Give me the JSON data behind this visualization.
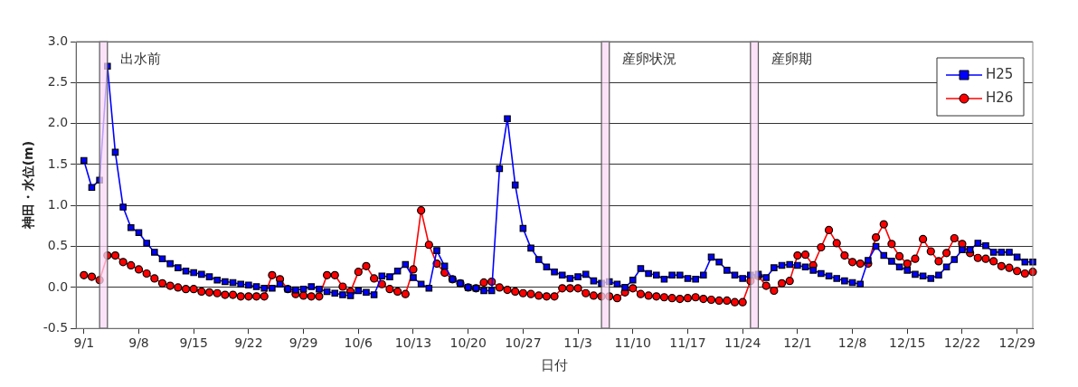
{
  "chart_data": {
    "type": "line",
    "xlabel": "日付",
    "ylabel": "神田・水位(m)",
    "x": [
      "--09-01",
      "--09-02",
      "--09-03",
      "--09-04",
      "--09-05",
      "--09-06",
      "--09-07",
      "--09-08",
      "--09-09",
      "--09-10",
      "--09-11",
      "--09-12",
      "--09-13",
      "--09-14",
      "--09-15",
      "--09-16",
      "--09-17",
      "--09-18",
      "--09-19",
      "--09-20",
      "--09-21",
      "--09-22",
      "--09-23",
      "--09-24",
      "--09-25",
      "--09-26",
      "--09-27",
      "--09-28",
      "--09-29",
      "--09-30",
      "--10-01",
      "--10-02",
      "--10-03",
      "--10-04",
      "--10-05",
      "--10-06",
      "--10-07",
      "--10-08",
      "--10-09",
      "--10-10",
      "--10-11",
      "--10-12",
      "--10-13",
      "--10-14",
      "--10-15",
      "--10-16",
      "--10-17",
      "--10-18",
      "--10-19",
      "--10-20",
      "--10-21",
      "--10-22",
      "--10-23",
      "--10-24",
      "--10-25",
      "--10-26",
      "--10-27",
      "--10-28",
      "--10-29",
      "--10-30",
      "--10-31",
      "--11-01",
      "--11-02",
      "--11-03",
      "--11-04",
      "--11-05",
      "--11-06",
      "--11-07",
      "--11-08",
      "--11-09",
      "--11-10",
      "--11-11",
      "--11-12",
      "--11-13",
      "--11-14",
      "--11-15",
      "--11-16",
      "--11-17",
      "--11-18",
      "--11-19",
      "--11-20",
      "--11-21",
      "--11-22",
      "--11-23",
      "--11-24",
      "--11-25",
      "--11-26",
      "--11-27",
      "--11-28",
      "--11-29",
      "--11-30",
      "--12-01",
      "--12-02",
      "--12-03",
      "--12-04",
      "--12-05",
      "--12-06",
      "--12-07",
      "--12-08",
      "--12-09",
      "--12-10",
      "--12-11",
      "--12-12",
      "--12-13",
      "--12-14",
      "--12-15",
      "--12-16",
      "--12-17",
      "--12-18",
      "--12-19",
      "--12-20",
      "--12-21",
      "--12-22",
      "--12-23",
      "--12-24",
      "--12-25",
      "--12-26",
      "--12-27",
      "--12-28",
      "--12-29",
      "--12-30",
      "--12-31"
    ],
    "series": [
      {
        "name": "H25",
        "color": "#0000ff",
        "marker": "square",
        "values": [
          1.55,
          1.22,
          1.31,
          2.7,
          1.65,
          0.98,
          0.73,
          0.67,
          0.54,
          0.43,
          0.35,
          0.29,
          0.24,
          0.2,
          0.18,
          0.16,
          0.13,
          0.09,
          0.07,
          0.06,
          0.04,
          0.03,
          0.01,
          -0.01,
          -0.01,
          0.04,
          -0.02,
          -0.03,
          -0.02,
          0.01,
          -0.02,
          -0.05,
          -0.07,
          -0.09,
          -0.1,
          -0.04,
          -0.06,
          -0.09,
          0.14,
          0.13,
          0.2,
          0.28,
          0.12,
          0.04,
          -0.01,
          0.45,
          0.26,
          0.1,
          0.05,
          0.0,
          -0.01,
          -0.04,
          -0.04,
          1.45,
          2.06,
          1.25,
          0.72,
          0.48,
          0.34,
          0.25,
          0.19,
          0.15,
          0.11,
          0.13,
          0.16,
          0.08,
          0.05,
          0.07,
          0.04,
          0.0,
          0.09,
          0.23,
          0.17,
          0.15,
          0.1,
          0.15,
          0.15,
          0.11,
          0.1,
          0.15,
          0.37,
          0.31,
          0.21,
          0.15,
          0.11,
          0.15,
          0.16,
          0.12,
          0.24,
          0.27,
          0.28,
          0.27,
          0.25,
          0.21,
          0.17,
          0.14,
          0.11,
          0.08,
          0.06,
          0.04,
          0.33,
          0.5,
          0.39,
          0.32,
          0.25,
          0.21,
          0.16,
          0.14,
          0.11,
          0.15,
          0.25,
          0.34,
          0.46,
          0.46,
          0.54,
          0.51,
          0.43,
          0.43,
          0.43,
          0.37,
          0.31,
          0.31
        ]
      },
      {
        "name": "H26",
        "color": "#ff0000",
        "marker": "circle",
        "values": [
          0.15,
          0.13,
          0.09,
          0.39,
          0.39,
          0.31,
          0.27,
          0.22,
          0.17,
          0.11,
          0.05,
          0.02,
          0.0,
          -0.02,
          -0.02,
          -0.05,
          -0.06,
          -0.07,
          -0.09,
          -0.09,
          -0.11,
          -0.11,
          -0.11,
          -0.11,
          0.15,
          0.1,
          -0.02,
          -0.08,
          -0.1,
          -0.11,
          -0.11,
          0.15,
          0.15,
          0.01,
          -0.05,
          0.19,
          0.26,
          0.11,
          0.04,
          -0.02,
          -0.05,
          -0.08,
          0.22,
          0.94,
          0.52,
          0.29,
          0.18,
          0.1,
          0.05,
          0.0,
          -0.01,
          0.06,
          0.07,
          0.0,
          -0.03,
          -0.05,
          -0.07,
          -0.08,
          -0.1,
          -0.11,
          -0.11,
          -0.01,
          -0.01,
          -0.01,
          -0.07,
          -0.1,
          -0.11,
          -0.11,
          -0.13,
          -0.06,
          -0.01,
          -0.08,
          -0.1,
          -0.11,
          -0.12,
          -0.13,
          -0.14,
          -0.13,
          -0.12,
          -0.14,
          -0.15,
          -0.16,
          -0.16,
          -0.18,
          -0.18,
          0.08,
          0.14,
          0.02,
          -0.04,
          0.05,
          0.08,
          0.39,
          0.4,
          0.27,
          0.49,
          0.7,
          0.54,
          0.39,
          0.31,
          0.29,
          0.29,
          0.61,
          0.77,
          0.53,
          0.38,
          0.29,
          0.35,
          0.59,
          0.44,
          0.32,
          0.42,
          0.6,
          0.53,
          0.42,
          0.36,
          0.35,
          0.32,
          0.26,
          0.24,
          0.2,
          0.17,
          0.19
        ]
      }
    ],
    "xlim": [
      "--08-31",
      "--12-31"
    ],
    "xticks": [
      {
        "value": "--09-01",
        "label": "9/1"
      },
      {
        "value": "--09-08",
        "label": "9/8"
      },
      {
        "value": "--09-15",
        "label": "9/15"
      },
      {
        "value": "--09-22",
        "label": "9/22"
      },
      {
        "value": "--09-29",
        "label": "9/29"
      },
      {
        "value": "--10-06",
        "label": "10/6"
      },
      {
        "value": "--10-13",
        "label": "10/13"
      },
      {
        "value": "--10-20",
        "label": "10/20"
      },
      {
        "value": "--10-27",
        "label": "10/27"
      },
      {
        "value": "--11-03",
        "label": "11/3"
      },
      {
        "value": "--11-10",
        "label": "11/10"
      },
      {
        "value": "--11-17",
        "label": "11/17"
      },
      {
        "value": "--11-24",
        "label": "11/24"
      },
      {
        "value": "--12-01",
        "label": "12/1"
      },
      {
        "value": "--12-08",
        "label": "12/8"
      },
      {
        "value": "--12-15",
        "label": "12/15"
      },
      {
        "value": "--12-22",
        "label": "12/22"
      },
      {
        "value": "--12-29",
        "label": "12/29"
      }
    ],
    "ylim": [
      -0.5,
      3.0
    ],
    "yticks": [
      -0.5,
      {
        "value": 0,
        "label": "0.0"
      },
      0.5,
      {
        "value": 1,
        "label": "1.0"
      },
      1.5,
      {
        "value": 2,
        "label": "2.0"
      },
      2.5,
      {
        "value": 3,
        "label": "3.0"
      }
    ],
    "bands": [
      {
        "axis": "x",
        "from": "--09-03",
        "to": "--09-04",
        "color": "#f9d8f6"
      },
      {
        "axis": "x",
        "from": "--11-06",
        "to": "--11-07",
        "color": "#f9d8f6"
      },
      {
        "axis": "x",
        "from": "--11-25",
        "to": "--11-26",
        "color": "#f9d8f6"
      }
    ],
    "annotations": [
      "出水前",
      "産卵状況",
      "産卵期"
    ],
    "grid": "y",
    "legend": "top right",
    "line_style": "solid"
  }
}
